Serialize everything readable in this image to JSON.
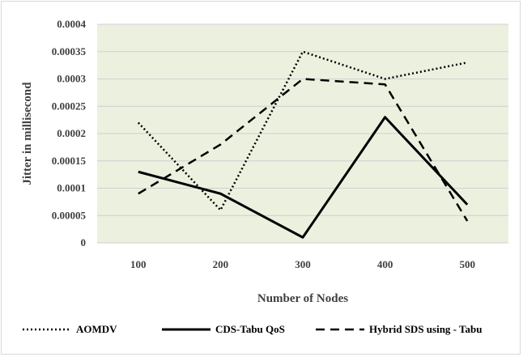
{
  "chart_data": {
    "type": "line",
    "title": "",
    "xlabel": "Number of Nodes",
    "ylabel": "Jitter in millisecond",
    "categories": [
      "100",
      "200",
      "300",
      "400",
      "500"
    ],
    "ylim": [
      0,
      0.0004
    ],
    "yticks": [
      "0",
      "0.00005",
      "0.0001",
      "0.00015",
      "0.0002",
      "0.00025",
      "0.0003",
      "0.00035",
      "0.0004"
    ],
    "grid": true,
    "legend_position": "bottom",
    "plot_background": "#ebf1de",
    "series": [
      {
        "name": "AOMDV",
        "values": [
          0.00022,
          6e-05,
          0.00035,
          0.0003,
          0.00033
        ],
        "style": "dotted",
        "color": "#000000"
      },
      {
        "name": "CDS-Tabu QoS",
        "values": [
          0.00013,
          9e-05,
          1e-05,
          0.00023,
          7e-05
        ],
        "style": "solid",
        "color": "#000000"
      },
      {
        "name": "Hybrid SDS using - Tabu",
        "values": [
          9e-05,
          0.00018,
          0.0003,
          0.00029,
          4e-05
        ],
        "style": "dashed",
        "color": "#000000"
      }
    ]
  }
}
